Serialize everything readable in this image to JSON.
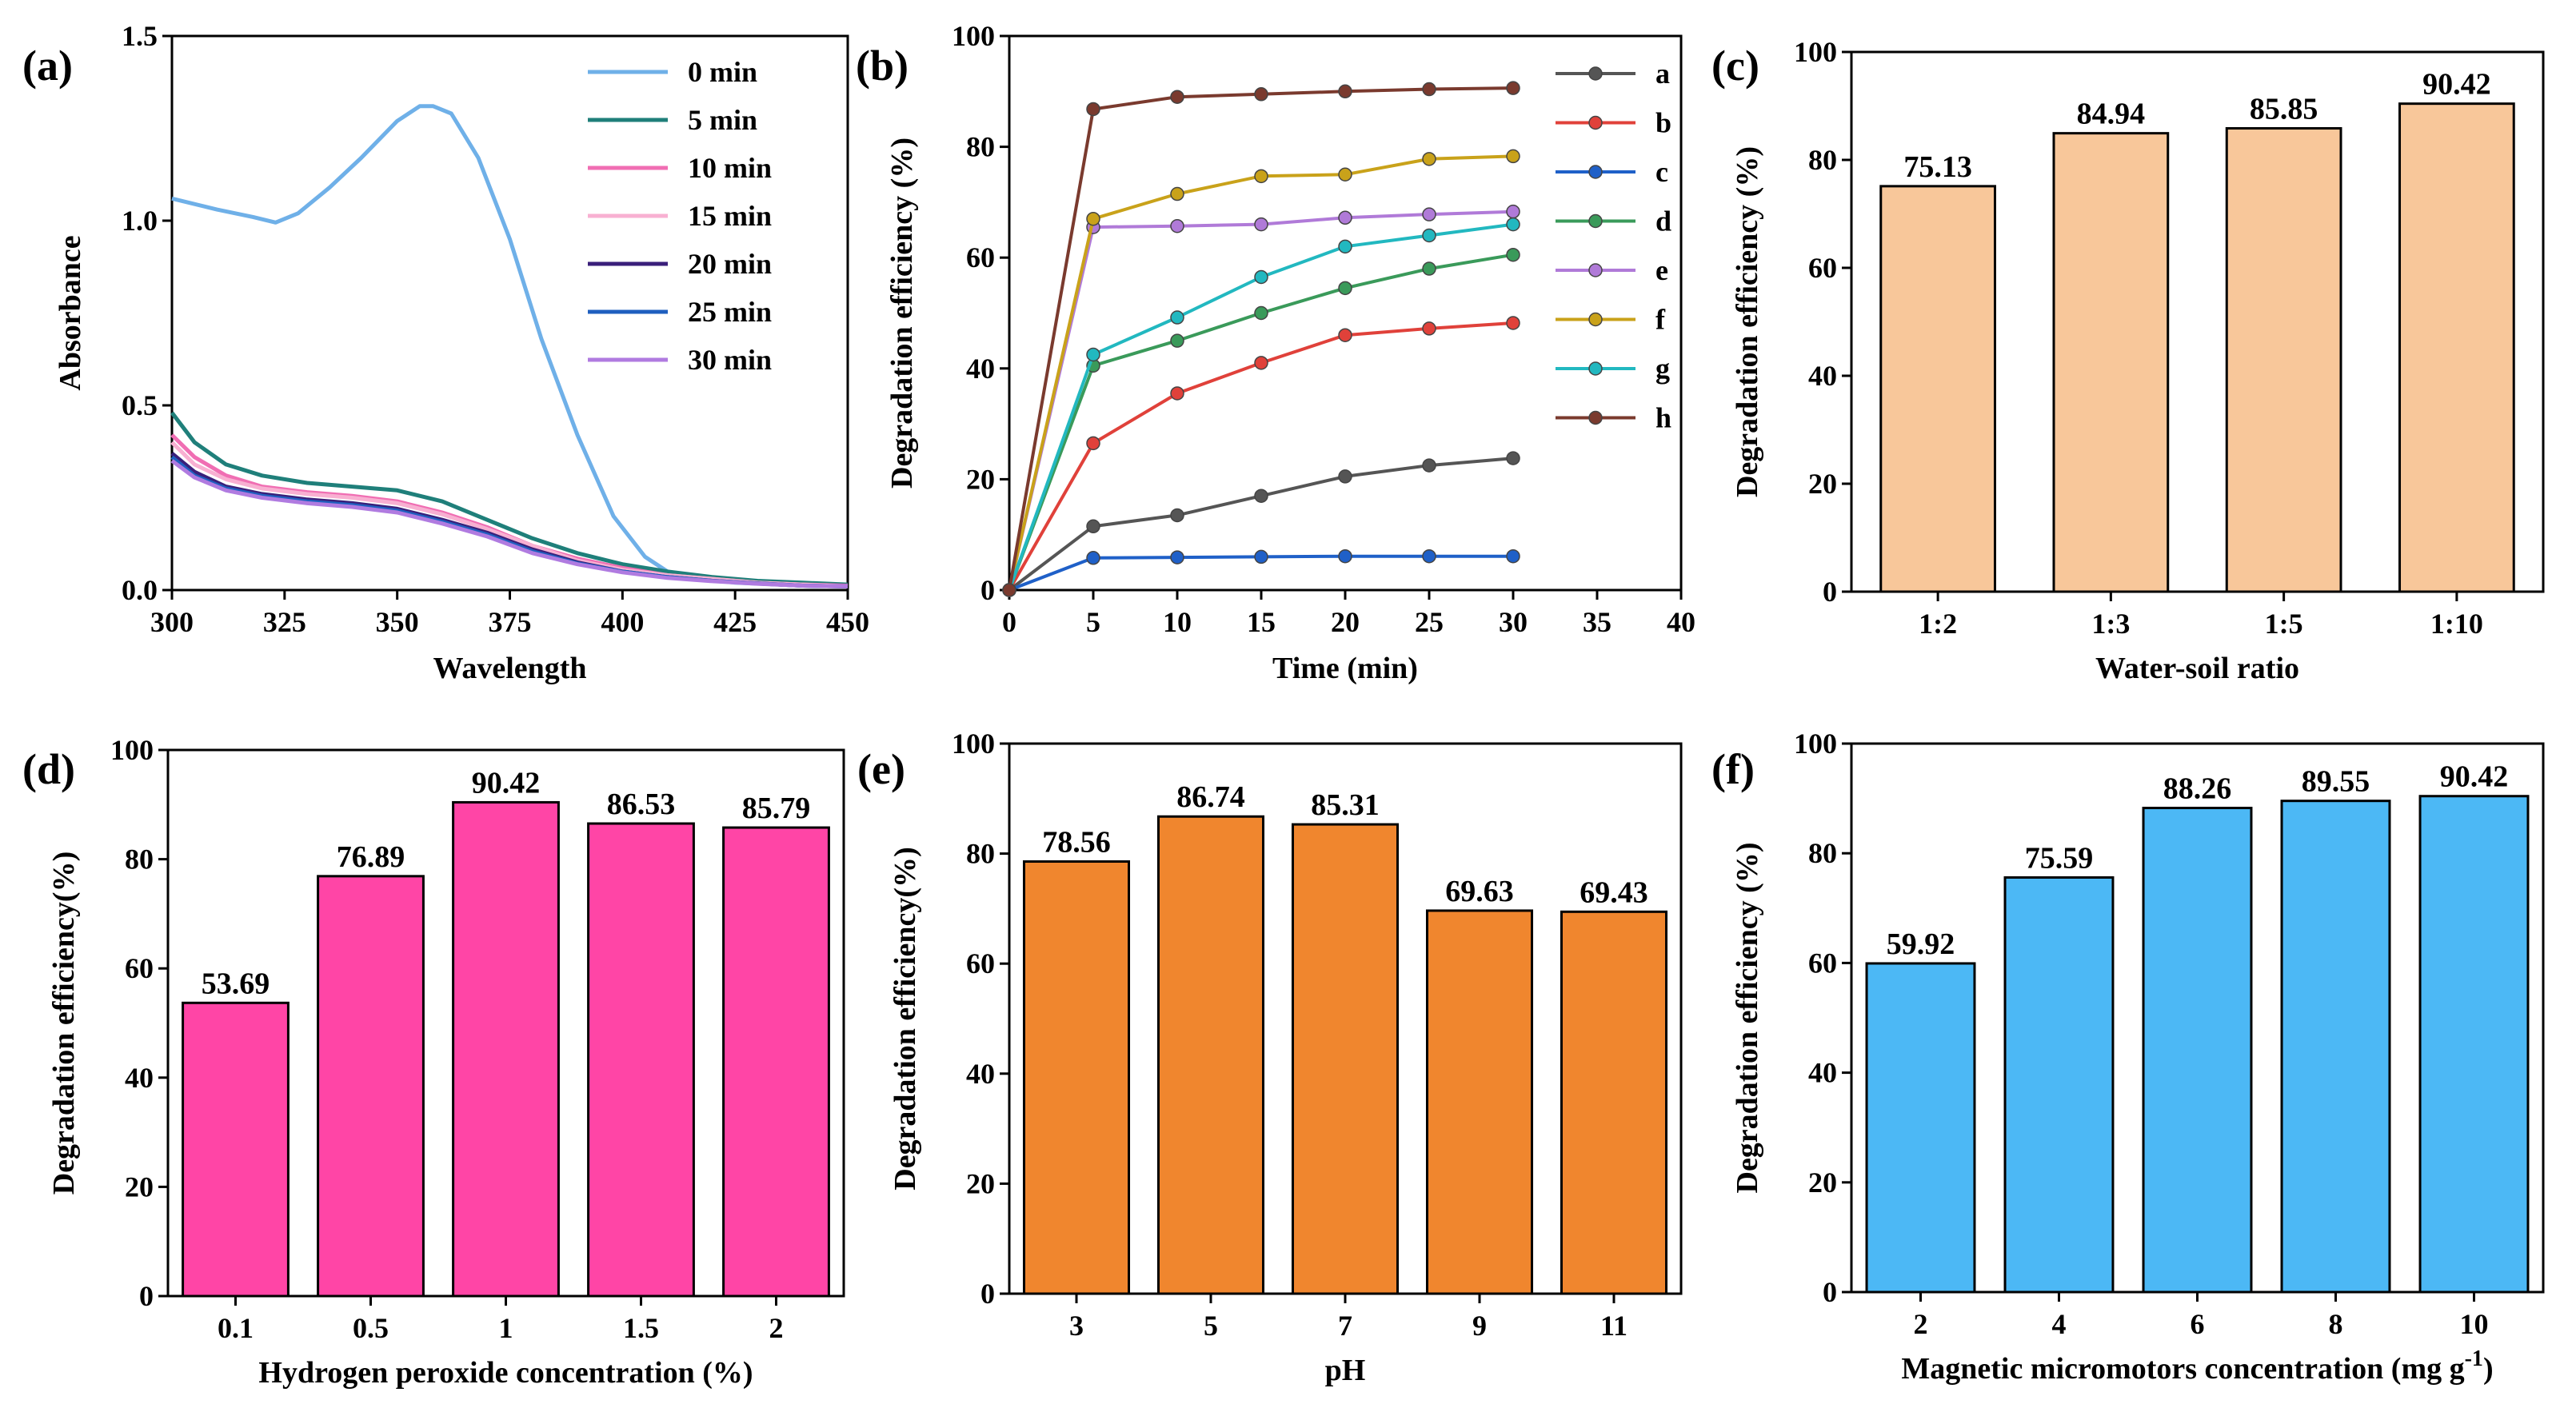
{
  "chart_data": [
    {
      "id": "a",
      "panel_label": "(a)",
      "type": "line",
      "xlabel": "Wavelength",
      "ylabel": "Absorbance",
      "xlim": [
        300,
        450
      ],
      "ylim": [
        0,
        1.5
      ],
      "xticks": [
        300,
        325,
        350,
        375,
        400,
        425,
        450
      ],
      "yticks": [
        0.0,
        0.5,
        1.0,
        1.5
      ],
      "ytick_labels": [
        "0.0",
        "0.5",
        "1.0",
        "1.5"
      ],
      "legend_position": "top-right",
      "series": [
        {
          "name": "0 min",
          "color": "#6fb0e8",
          "x": [
            300,
            310,
            318,
            323,
            328,
            335,
            342,
            350,
            355,
            358,
            362,
            368,
            375,
            382,
            390,
            398,
            405,
            410,
            418,
            425,
            435,
            450
          ],
          "y": [
            1.06,
            1.03,
            1.01,
            0.995,
            1.02,
            1.09,
            1.17,
            1.27,
            1.31,
            1.31,
            1.29,
            1.17,
            0.95,
            0.68,
            0.42,
            0.2,
            0.09,
            0.05,
            0.03,
            0.02,
            0.015,
            0.01
          ]
        },
        {
          "name": "5 min",
          "color": "#1f7f7a",
          "x": [
            300,
            305,
            312,
            320,
            330,
            340,
            350,
            360,
            370,
            380,
            390,
            400,
            410,
            420,
            430,
            440,
            450
          ],
          "y": [
            0.48,
            0.4,
            0.34,
            0.31,
            0.29,
            0.28,
            0.27,
            0.24,
            0.19,
            0.14,
            0.1,
            0.07,
            0.05,
            0.035,
            0.025,
            0.02,
            0.015
          ]
        },
        {
          "name": "10 min",
          "color": "#f06eb3",
          "x": [
            300,
            305,
            312,
            320,
            330,
            340,
            350,
            360,
            370,
            380,
            390,
            400,
            410,
            420,
            430,
            440,
            450
          ],
          "y": [
            0.42,
            0.36,
            0.31,
            0.28,
            0.265,
            0.255,
            0.24,
            0.21,
            0.17,
            0.12,
            0.085,
            0.06,
            0.04,
            0.03,
            0.02,
            0.015,
            0.012
          ]
        },
        {
          "name": "15 min",
          "color": "#f8b0d2",
          "x": [
            300,
            305,
            312,
            320,
            330,
            340,
            350,
            360,
            370,
            380,
            390,
            400,
            410,
            420,
            430,
            440,
            450
          ],
          "y": [
            0.4,
            0.34,
            0.3,
            0.275,
            0.26,
            0.25,
            0.235,
            0.205,
            0.165,
            0.12,
            0.08,
            0.055,
            0.04,
            0.03,
            0.02,
            0.015,
            0.01
          ]
        },
        {
          "name": "20 min",
          "color": "#3a1f7a",
          "x": [
            300,
            305,
            312,
            320,
            330,
            340,
            350,
            360,
            370,
            380,
            390,
            400,
            410,
            420,
            430,
            440,
            450
          ],
          "y": [
            0.37,
            0.32,
            0.28,
            0.26,
            0.245,
            0.235,
            0.22,
            0.19,
            0.155,
            0.11,
            0.075,
            0.05,
            0.035,
            0.025,
            0.018,
            0.012,
            0.01
          ]
        },
        {
          "name": "25 min",
          "color": "#1f5fbf",
          "x": [
            300,
            305,
            312,
            320,
            330,
            340,
            350,
            360,
            370,
            380,
            390,
            400,
            410,
            420,
            430,
            440,
            450
          ],
          "y": [
            0.36,
            0.31,
            0.275,
            0.255,
            0.24,
            0.23,
            0.215,
            0.185,
            0.15,
            0.105,
            0.072,
            0.05,
            0.035,
            0.025,
            0.018,
            0.012,
            0.01
          ]
        },
        {
          "name": "30 min",
          "color": "#b07be0",
          "x": [
            300,
            305,
            312,
            320,
            330,
            340,
            350,
            360,
            370,
            380,
            390,
            400,
            410,
            420,
            430,
            440,
            450
          ],
          "y": [
            0.35,
            0.305,
            0.27,
            0.25,
            0.235,
            0.225,
            0.21,
            0.18,
            0.145,
            0.1,
            0.07,
            0.048,
            0.033,
            0.024,
            0.017,
            0.012,
            0.01
          ]
        }
      ]
    },
    {
      "id": "b",
      "panel_label": "(b)",
      "type": "line",
      "xlabel": "Time (min)",
      "ylabel": "Degradation efficiency (%)",
      "xlim": [
        0,
        40
      ],
      "ylim": [
        0,
        100
      ],
      "xticks": [
        0,
        5,
        10,
        15,
        20,
        25,
        30,
        35,
        40
      ],
      "yticks": [
        0,
        20,
        40,
        60,
        80,
        100
      ],
      "legend_position": "top-right",
      "x": [
        0,
        5,
        10,
        15,
        20,
        25,
        30
      ],
      "series": [
        {
          "name": "a",
          "color": "#555555",
          "values": [
            0,
            11.5,
            13.5,
            17,
            20.5,
            22.5,
            23.8
          ]
        },
        {
          "name": "b",
          "color": "#e0413a",
          "values": [
            0,
            26.5,
            35.5,
            41,
            46,
            47.2,
            48.2
          ]
        },
        {
          "name": "c",
          "color": "#1f60c8",
          "values": [
            0,
            5.8,
            5.9,
            6.0,
            6.1,
            6.1,
            6.1
          ]
        },
        {
          "name": "d",
          "color": "#3a9a5a",
          "values": [
            0,
            40.5,
            45,
            50,
            54.5,
            58,
            60.5
          ]
        },
        {
          "name": "e",
          "color": "#b07ad8",
          "values": [
            0,
            65.5,
            65.7,
            66,
            67.2,
            67.8,
            68.3
          ]
        },
        {
          "name": "f",
          "color": "#c9a21a",
          "values": [
            0,
            67,
            71.5,
            74.7,
            75,
            77.8,
            78.3
          ]
        },
        {
          "name": "g",
          "color": "#22b8c0",
          "values": [
            0,
            42.5,
            49.2,
            56.5,
            62,
            64,
            66
          ]
        },
        {
          "name": "h",
          "color": "#7a3a2e",
          "values": [
            0,
            86.8,
            89,
            89.5,
            90,
            90.4,
            90.6
          ]
        }
      ]
    },
    {
      "id": "c",
      "panel_label": "(c)",
      "type": "bar",
      "xlabel": "Water-soil ratio",
      "ylabel": "Degradation efficiency (%)",
      "ylim": [
        0,
        100
      ],
      "yticks": [
        0,
        20,
        40,
        60,
        80,
        100
      ],
      "bar_color": "#f8c79a",
      "categories": [
        "1:2",
        "1:3",
        "1:5",
        "1:10"
      ],
      "values": [
        75.13,
        84.94,
        85.85,
        90.42
      ],
      "labels": [
        "75.13",
        "84.94",
        "85.85",
        "90.42"
      ]
    },
    {
      "id": "d",
      "panel_label": "(d)",
      "type": "bar",
      "xlabel": "Hydrogen peroxide concentration (%)",
      "ylabel": "Degradation efficiency(%)",
      "ylim": [
        0,
        100
      ],
      "yticks": [
        0,
        20,
        40,
        60,
        80,
        100
      ],
      "bar_color": "#ff45a6",
      "categories": [
        "0.1",
        "0.5",
        "1",
        "1.5",
        "2"
      ],
      "values": [
        53.69,
        76.89,
        90.42,
        86.53,
        85.79
      ],
      "labels": [
        "53.69",
        "76.89",
        "90.42",
        "86.53",
        "85.79"
      ]
    },
    {
      "id": "e",
      "panel_label": "(e)",
      "type": "bar",
      "xlabel": "pH",
      "ylabel": "Degradation efficiency(%)",
      "ylim": [
        0,
        100
      ],
      "yticks": [
        0,
        20,
        40,
        60,
        80,
        100
      ],
      "bar_color": "#f0862e",
      "categories": [
        "3",
        "5",
        "7",
        "9",
        "11"
      ],
      "values": [
        78.56,
        86.74,
        85.31,
        69.63,
        69.43
      ],
      "labels": [
        "78.56",
        "86.74",
        "85.31",
        "69.63",
        "69.43"
      ]
    },
    {
      "id": "f",
      "panel_label": "(f)",
      "type": "bar",
      "xlabel": "Magnetic micromotors concentration (mg g",
      "xlabel_sup": "-1",
      "xlabel_close": ")",
      "ylabel": "Degradation efficiency (%)",
      "ylim": [
        0,
        100
      ],
      "yticks": [
        0,
        20,
        40,
        60,
        80,
        100
      ],
      "bar_color": "#4cb8f5",
      "categories": [
        "2",
        "4",
        "6",
        "8",
        "10"
      ],
      "values": [
        59.92,
        75.59,
        88.26,
        89.55,
        90.42
      ],
      "labels": [
        "59.92",
        "75.59",
        "88.26",
        "89.55",
        "90.42"
      ]
    }
  ]
}
